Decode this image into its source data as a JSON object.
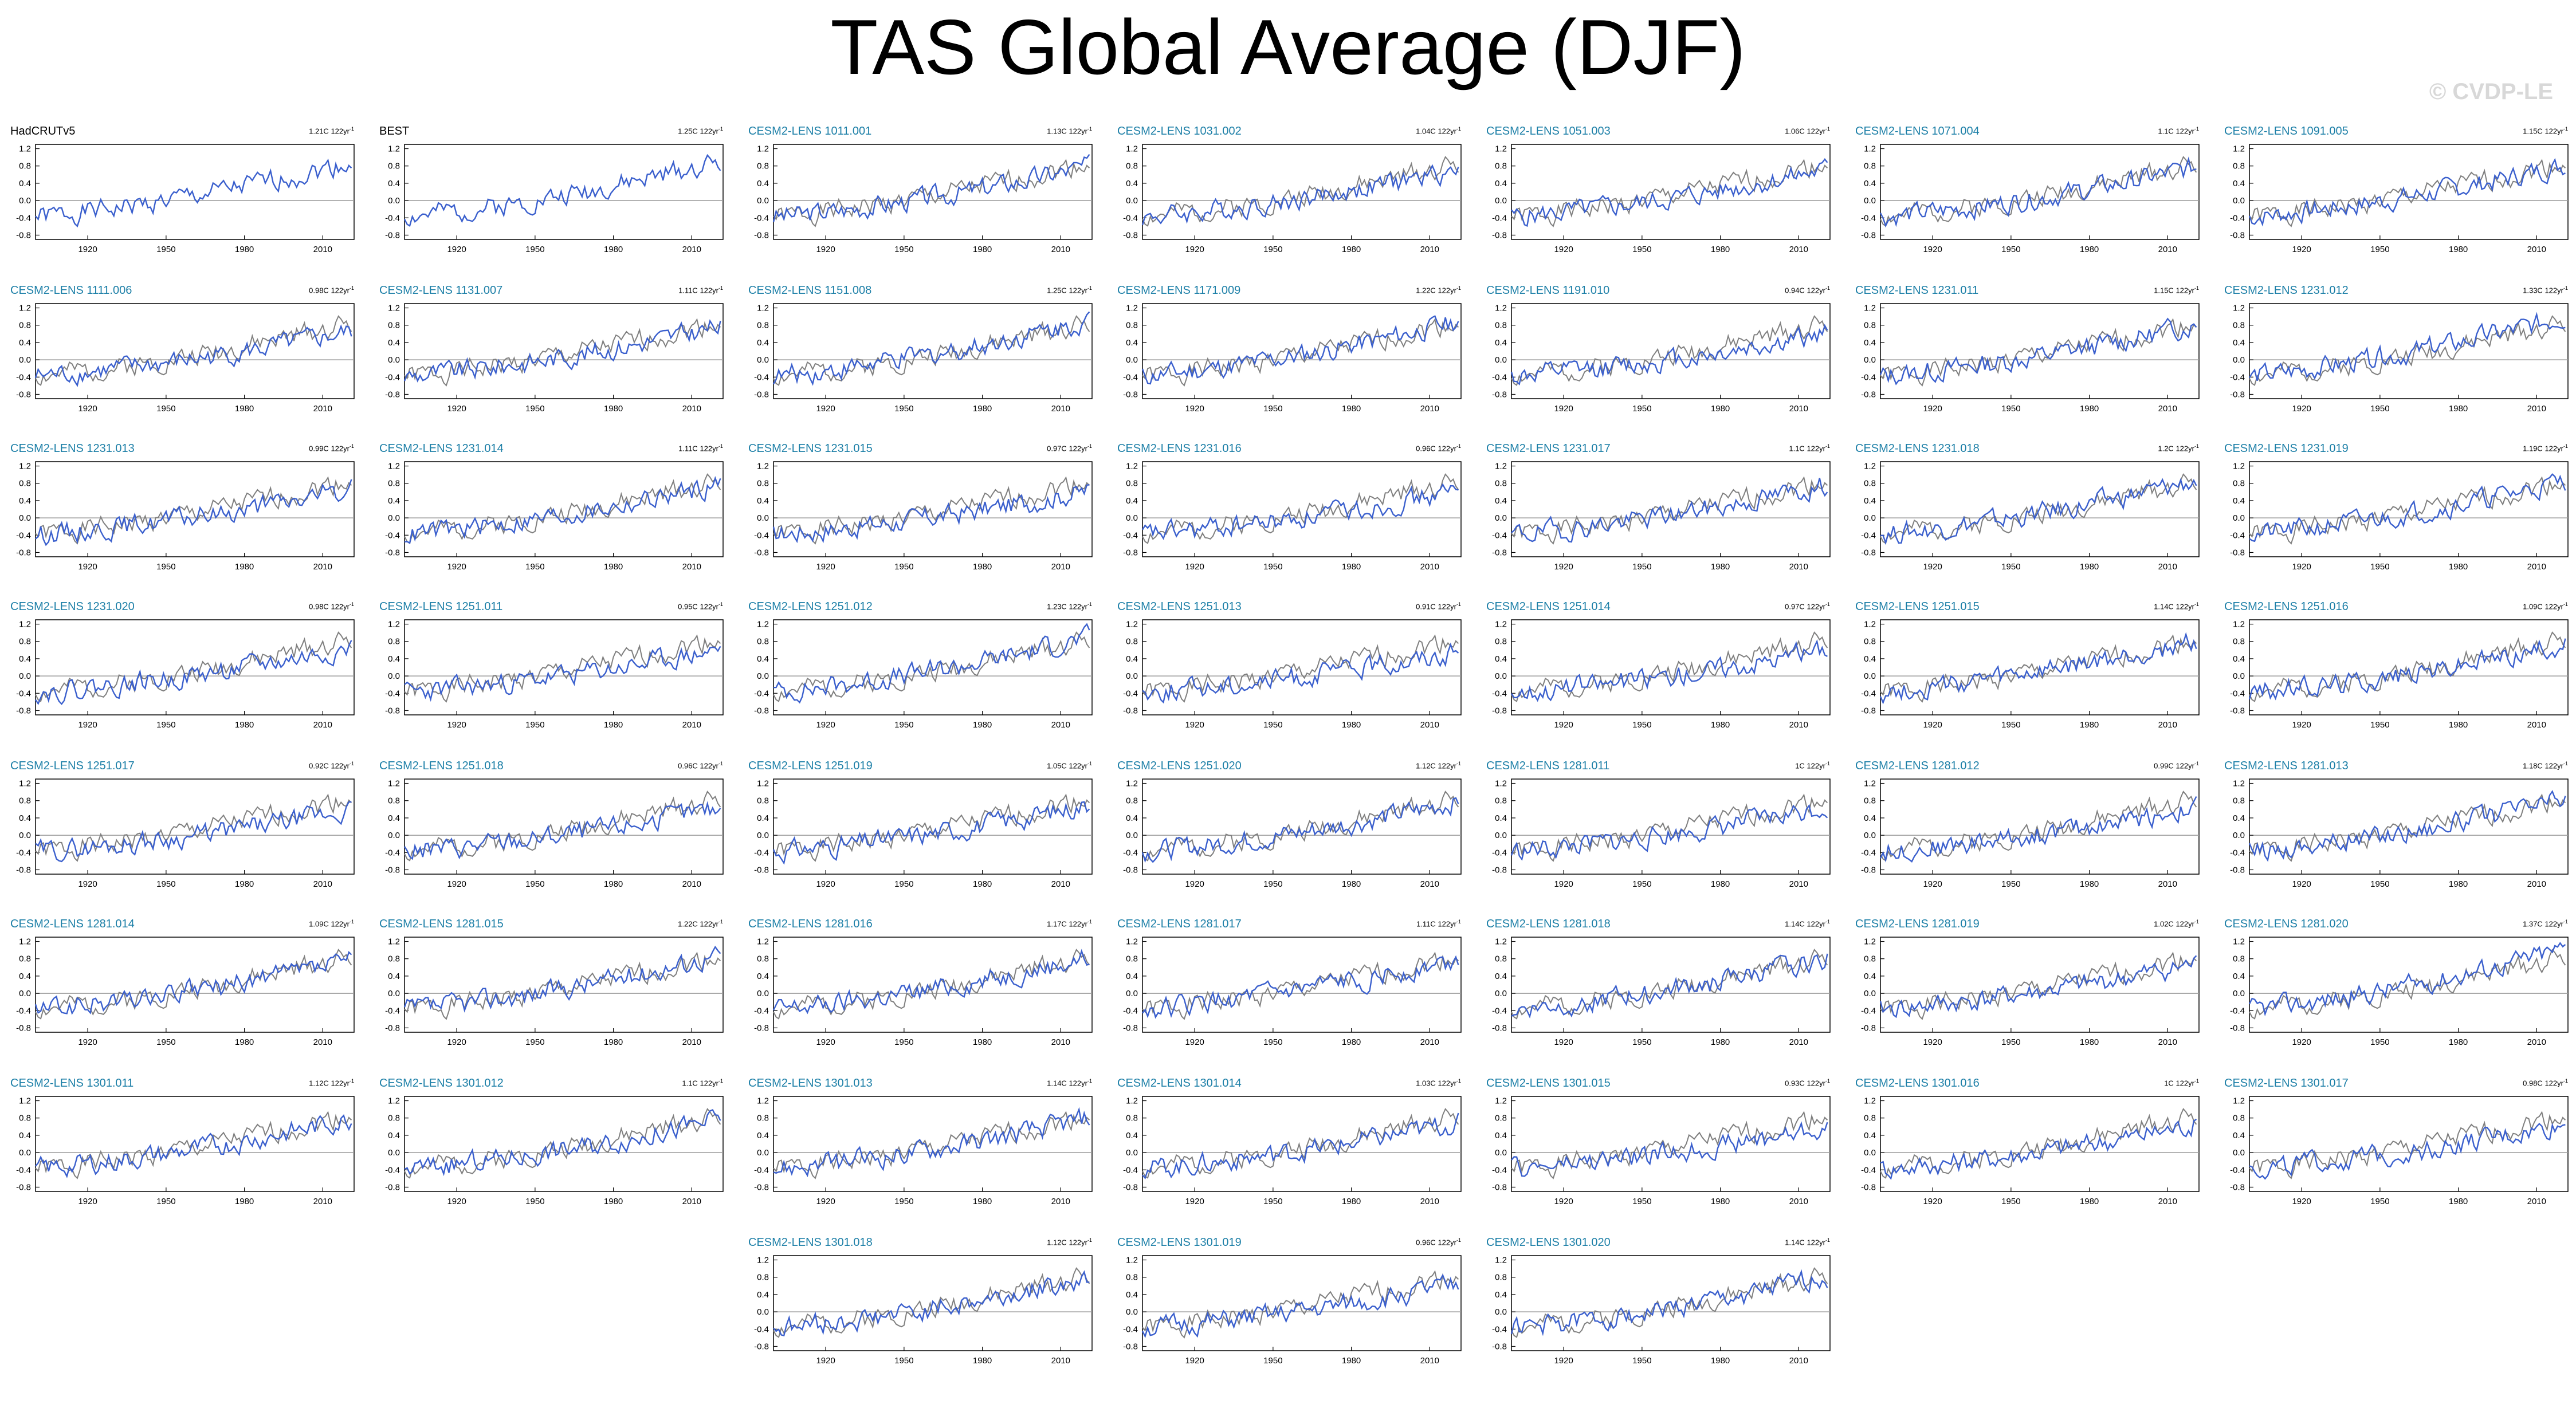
{
  "title": "TAS Global Average (DJF)",
  "watermark": "© CVDP-LE",
  "colors": {
    "model_line": "#3a5fcd",
    "obs_line": "#7f7f7f",
    "model_label": "#1c7fa7",
    "obs_label": "#000000",
    "zero_line": "#9a9a9a"
  },
  "trend_units": "122yr",
  "chart_data": {
    "type": "line",
    "x_range": [
      1900,
      2022
    ],
    "y_range": [
      -0.9,
      1.3
    ],
    "xticks": [
      "1920",
      "1950",
      "1980",
      "2010"
    ],
    "yticks": [
      "1.2",
      "0.8",
      "0.4",
      "0.0",
      "-0.4",
      "-0.8"
    ],
    "reference_line_y": 0,
    "panels": [
      {
        "label": "HadCRUTv5",
        "trend": "1.21C",
        "is_obs": true,
        "seed": 1
      },
      {
        "label": "BEST",
        "trend": "1.25C",
        "is_obs": true,
        "seed": 2
      },
      {
        "label": "CESM2-LENS 1011.001",
        "trend": "1.13C",
        "is_obs": false,
        "seed": 3
      },
      {
        "label": "CESM2-LENS 1031.002",
        "trend": "1.04C",
        "is_obs": false,
        "seed": 4
      },
      {
        "label": "CESM2-LENS 1051.003",
        "trend": "1.06C",
        "is_obs": false,
        "seed": 5
      },
      {
        "label": "CESM2-LENS 1071.004",
        "trend": "1.1C",
        "is_obs": false,
        "seed": 6
      },
      {
        "label": "CESM2-LENS 1091.005",
        "trend": "1.15C",
        "is_obs": false,
        "seed": 7
      },
      {
        "label": "CESM2-LENS 1111.006",
        "trend": "0.98C",
        "is_obs": false,
        "seed": 8
      },
      {
        "label": "CESM2-LENS 1131.007",
        "trend": "1.11C",
        "is_obs": false,
        "seed": 9
      },
      {
        "label": "CESM2-LENS 1151.008",
        "trend": "1.25C",
        "is_obs": false,
        "seed": 10
      },
      {
        "label": "CESM2-LENS 1171.009",
        "trend": "1.22C",
        "is_obs": false,
        "seed": 11
      },
      {
        "label": "CESM2-LENS 1191.010",
        "trend": "0.94C",
        "is_obs": false,
        "seed": 12
      },
      {
        "label": "CESM2-LENS 1231.011",
        "trend": "1.15C",
        "is_obs": false,
        "seed": 13
      },
      {
        "label": "CESM2-LENS 1231.012",
        "trend": "1.33C",
        "is_obs": false,
        "seed": 14
      },
      {
        "label": "CESM2-LENS 1231.013",
        "trend": "0.99C",
        "is_obs": false,
        "seed": 15
      },
      {
        "label": "CESM2-LENS 1231.014",
        "trend": "1.11C",
        "is_obs": false,
        "seed": 16
      },
      {
        "label": "CESM2-LENS 1231.015",
        "trend": "0.97C",
        "is_obs": false,
        "seed": 17
      },
      {
        "label": "CESM2-LENS 1231.016",
        "trend": "0.96C",
        "is_obs": false,
        "seed": 18
      },
      {
        "label": "CESM2-LENS 1231.017",
        "trend": "1.1C",
        "is_obs": false,
        "seed": 19
      },
      {
        "label": "CESM2-LENS 1231.018",
        "trend": "1.2C",
        "is_obs": false,
        "seed": 20
      },
      {
        "label": "CESM2-LENS 1231.019",
        "trend": "1.19C",
        "is_obs": false,
        "seed": 21
      },
      {
        "label": "CESM2-LENS 1231.020",
        "trend": "0.98C",
        "is_obs": false,
        "seed": 22
      },
      {
        "label": "CESM2-LENS 1251.011",
        "trend": "0.95C",
        "is_obs": false,
        "seed": 23
      },
      {
        "label": "CESM2-LENS 1251.012",
        "trend": "1.23C",
        "is_obs": false,
        "seed": 24
      },
      {
        "label": "CESM2-LENS 1251.013",
        "trend": "0.91C",
        "is_obs": false,
        "seed": 25
      },
      {
        "label": "CESM2-LENS 1251.014",
        "trend": "0.97C",
        "is_obs": false,
        "seed": 26
      },
      {
        "label": "CESM2-LENS 1251.015",
        "trend": "1.14C",
        "is_obs": false,
        "seed": 27
      },
      {
        "label": "CESM2-LENS 1251.016",
        "trend": "1.09C",
        "is_obs": false,
        "seed": 28
      },
      {
        "label": "CESM2-LENS 1251.017",
        "trend": "0.92C",
        "is_obs": false,
        "seed": 29
      },
      {
        "label": "CESM2-LENS 1251.018",
        "trend": "0.96C",
        "is_obs": false,
        "seed": 30
      },
      {
        "label": "CESM2-LENS 1251.019",
        "trend": "1.05C",
        "is_obs": false,
        "seed": 31
      },
      {
        "label": "CESM2-LENS 1251.020",
        "trend": "1.12C",
        "is_obs": false,
        "seed": 32
      },
      {
        "label": "CESM2-LENS 1281.011",
        "trend": "1C",
        "is_obs": false,
        "seed": 33
      },
      {
        "label": "CESM2-LENS 1281.012",
        "trend": "0.99C",
        "is_obs": false,
        "seed": 34
      },
      {
        "label": "CESM2-LENS 1281.013",
        "trend": "1.18C",
        "is_obs": false,
        "seed": 35
      },
      {
        "label": "CESM2-LENS 1281.014",
        "trend": "1.09C",
        "is_obs": false,
        "seed": 36
      },
      {
        "label": "CESM2-LENS 1281.015",
        "trend": "1.22C",
        "is_obs": false,
        "seed": 37
      },
      {
        "label": "CESM2-LENS 1281.016",
        "trend": "1.17C",
        "is_obs": false,
        "seed": 38
      },
      {
        "label": "CESM2-LENS 1281.017",
        "trend": "1.11C",
        "is_obs": false,
        "seed": 39
      },
      {
        "label": "CESM2-LENS 1281.018",
        "trend": "1.14C",
        "is_obs": false,
        "seed": 40
      },
      {
        "label": "CESM2-LENS 1281.019",
        "trend": "1.02C",
        "is_obs": false,
        "seed": 41
      },
      {
        "label": "CESM2-LENS 1281.020",
        "trend": "1.37C",
        "is_obs": false,
        "seed": 42
      },
      {
        "label": "CESM2-LENS 1301.011",
        "trend": "1.12C",
        "is_obs": false,
        "seed": 43
      },
      {
        "label": "CESM2-LENS 1301.012",
        "trend": "1.1C",
        "is_obs": false,
        "seed": 44
      },
      {
        "label": "CESM2-LENS 1301.013",
        "trend": "1.14C",
        "is_obs": false,
        "seed": 45
      },
      {
        "label": "CESM2-LENS 1301.014",
        "trend": "1.03C",
        "is_obs": false,
        "seed": 46
      },
      {
        "label": "CESM2-LENS 1301.015",
        "trend": "0.93C",
        "is_obs": false,
        "seed": 47
      },
      {
        "label": "CESM2-LENS 1301.016",
        "trend": "1C",
        "is_obs": false,
        "seed": 48
      },
      {
        "label": "CESM2-LENS 1301.017",
        "trend": "0.98C",
        "is_obs": false,
        "seed": 49
      },
      {
        "label": "CESM2-LENS 1301.018",
        "trend": "1.12C",
        "is_obs": false,
        "seed": 50
      },
      {
        "label": "CESM2-LENS 1301.019",
        "trend": "0.96C",
        "is_obs": false,
        "seed": 51
      },
      {
        "label": "CESM2-LENS 1301.020",
        "trend": "1.14C",
        "is_obs": false,
        "seed": 52
      }
    ]
  }
}
